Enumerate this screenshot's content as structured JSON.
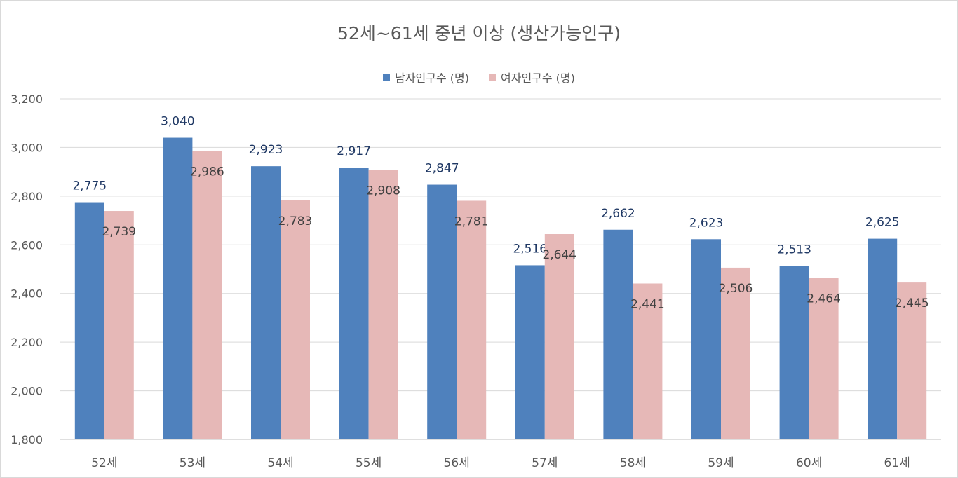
{
  "chart_data": {
    "type": "bar",
    "title": "52세~61세 중년 이상 (생산가능인구)",
    "categories": [
      "52세",
      "53세",
      "54세",
      "55세",
      "56세",
      "57세",
      "58세",
      "59세",
      "60세",
      "61세"
    ],
    "series": [
      {
        "name": "남자인구수 (명)",
        "color": "#4f81bd",
        "values": [
          2775,
          3040,
          2923,
          2917,
          2847,
          2516,
          2662,
          2623,
          2513,
          2625
        ]
      },
      {
        "name": "여자인구수 (명)",
        "color": "#e6b8b7",
        "values": [
          2739,
          2986,
          2783,
          2908,
          2781,
          2644,
          2441,
          2506,
          2464,
          2445
        ]
      }
    ],
    "ylim": [
      1800,
      3200
    ],
    "yticks": [
      1800,
      2000,
      2200,
      2400,
      2600,
      2800,
      3000,
      3200
    ],
    "grid": true,
    "legend_position": "top"
  }
}
